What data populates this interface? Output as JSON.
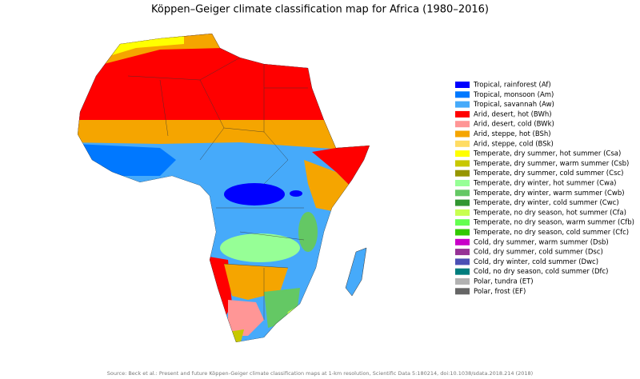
{
  "title": "Köppen–Geiger climate classification map for Africa (1980–2016)",
  "legend": {
    "items": [
      {
        "label": "Tropical, rainforest (Af)",
        "color": "#0000ff"
      },
      {
        "label": "Tropical, monsoon (Am)",
        "color": "#0078ff"
      },
      {
        "label": "Tropical, savannah (Aw)",
        "color": "#46aafa"
      },
      {
        "label": "Arid, desert, hot (BWh)",
        "color": "#ff0000"
      },
      {
        "label": "Arid, desert, cold (BWk)",
        "color": "#ff9696"
      },
      {
        "label": "Arid, steppe, hot (BSh)",
        "color": "#f5a500"
      },
      {
        "label": "Arid, steppe, cold (BSk)",
        "color": "#ffdc64"
      },
      {
        "label": "Temperate, dry summer, hot summer (Csa)",
        "color": "#ffff00"
      },
      {
        "label": "Temperate, dry summer, warm summer (Csb)",
        "color": "#c8c800"
      },
      {
        "label": "Temperate, dry summer, cold summer (Csc)",
        "color": "#969600"
      },
      {
        "label": "Temperate, dry winter, hot summer (Cwa)",
        "color": "#96ff96"
      },
      {
        "label": "Temperate, dry winter, warm summer (Cwb)",
        "color": "#64c864"
      },
      {
        "label": "Temperate, dry winter, cold summer (Cwc)",
        "color": "#329632"
      },
      {
        "label": "Temperate, no dry season, hot summer (Cfa)",
        "color": "#c8ff50"
      },
      {
        "label": "Temperate, no dry season, warm summer (Cfb)",
        "color": "#64ff50"
      },
      {
        "label": "Temperate, no dry season, cold summer (Cfc)",
        "color": "#32c800"
      },
      {
        "label": "Cold, dry summer, warm summer (Dsb)",
        "color": "#c800c8"
      },
      {
        "label": "Cold, dry summer, cold summer (Dsc)",
        "color": "#963296"
      },
      {
        "label": "Cold, dry winter, cold summer (Dwc)",
        "color": "#4b50b4"
      },
      {
        "label": "Cold, no dry season, cold summer (Dfc)",
        "color": "#007d7d"
      },
      {
        "label": "Polar, tundra (ET)",
        "color": "#b2b2b2"
      },
      {
        "label": "Polar, frost (EF)",
        "color": "#666666"
      }
    ]
  },
  "source": "Source: Beck et al.: Present and future Köppen-Geiger climate classification maps at 1-km resolution, Scientific Data 5:180214, doi:10.1038/sdata.2018.214 (2018)"
}
